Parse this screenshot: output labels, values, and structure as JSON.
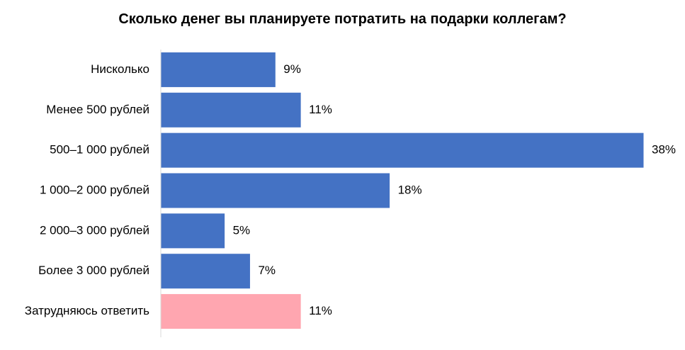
{
  "chart_data": {
    "type": "bar",
    "orientation": "horizontal",
    "title": "Сколько денег вы планируете потратить на подарки коллегам?",
    "xlabel": "",
    "ylabel": "",
    "categories": [
      "Нисколько",
      "Менее 500 рублей",
      "500–1 000 рублей",
      "1 000–2 000 рублей",
      "2 000–3 000 рублей",
      "Более 3 000 рублей",
      "Затрудняюсь ответить"
    ],
    "values": [
      9,
      11,
      38,
      18,
      5,
      7,
      11
    ],
    "value_labels": [
      "9%",
      "11%",
      "38%",
      "18%",
      "5%",
      "7%",
      "11%"
    ],
    "xlim": [
      0,
      38
    ],
    "grid": false,
    "legend": "none",
    "colors": {
      "default_bar": "#4472C4",
      "highlight_bar": "#FFA6B0",
      "axis_line": "#D9D9D9"
    },
    "highlight_index": 6
  }
}
